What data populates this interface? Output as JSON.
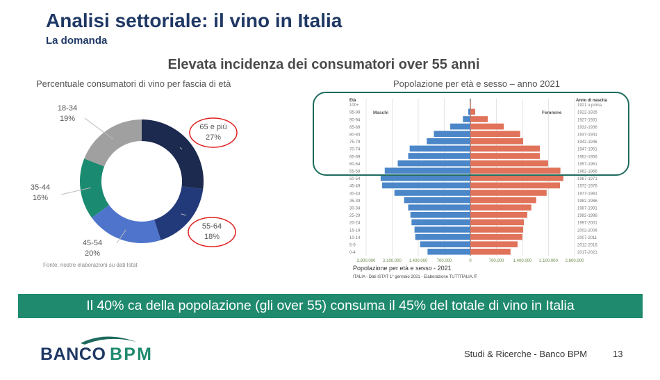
{
  "header": {
    "title": "Analisi settoriale: il vino in Italia",
    "subtitle": "La domanda"
  },
  "heading": "Elevata incidenza dei consumatori over 55 anni",
  "banner": "Il 40% ca della popolazione (gli over 55) consuma il 45% del totale di vino in Italia",
  "footer": {
    "text": "Studi & Ricerche - Banco BPM",
    "page": "13",
    "logo_text": "BANCO BPM"
  },
  "colors": {
    "title": "#1f3864",
    "banner": "#1f8a6e",
    "highlight": "#e02020",
    "male": "#4a86c8",
    "female": "#e0735a",
    "box": "#1e6b5e"
  },
  "chart_data": [
    {
      "type": "pie",
      "variant": "donut",
      "title": "Percentuale consumatori di vino per fascia di età",
      "source": "Fonte: nostre elaborazioni su dati Istat",
      "unit": "%",
      "slices": [
        {
          "label": "65 e più",
          "value": 27,
          "color": "#1b2a4e",
          "highlighted": true
        },
        {
          "label": "55-64",
          "value": 18,
          "color": "#223a7a",
          "highlighted": true
        },
        {
          "label": "45-54",
          "value": 20,
          "color": "#4f74cc",
          "highlighted": false
        },
        {
          "label": "35-44",
          "value": 16,
          "color": "#1a8a70",
          "highlighted": false
        },
        {
          "label": "18-34",
          "value": 19,
          "color": "#a0a0a0",
          "highlighted": false
        }
      ]
    },
    {
      "type": "bar",
      "variant": "population-pyramid",
      "title": "Popolazione per età e sesso – anno 2021",
      "inner_title": "Popolazione per età e sesso - 2021",
      "source": "ITALIA - Dati ISTAT 1° gennaio 2021 - Elaborazione TUTTITALIA.IT",
      "age_header": "Età",
      "birth_header": "Anno di nascita",
      "categories": [
        "100+",
        "95-99",
        "90-94",
        "85-89",
        "80-84",
        "75-79",
        "70-74",
        "65-69",
        "60-64",
        "55-59",
        "50-54",
        "45-49",
        "40-44",
        "35-39",
        "30-34",
        "25-29",
        "20-24",
        "15-19",
        "10-14",
        "5-9",
        "0-4"
      ],
      "birth_years": [
        "1921 o prima",
        "1922-1926",
        "1927-1931",
        "1932-1936",
        "1937-1941",
        "1942-1946",
        "1947-1951",
        "1952-1956",
        "1957-1961",
        "1962-1966",
        "1967-1971",
        "1972-1976",
        "1977-1981",
        "1982-1986",
        "1987-1991",
        "1992-1996",
        "1997-2001",
        "2002-2006",
        "2007-2011",
        "2012-2016",
        "2017-2021"
      ],
      "series": [
        {
          "name": "Maschi",
          "side": "left",
          "values": [
            5000,
            55000,
            200000,
            540000,
            980000,
            1170000,
            1630000,
            1670000,
            1950000,
            2300000,
            2410000,
            2370000,
            2040000,
            1780000,
            1670000,
            1610000,
            1580000,
            1500000,
            1480000,
            1350000,
            1150000
          ]
        },
        {
          "name": "Femmine",
          "side": "right",
          "values": [
            15000,
            130000,
            470000,
            900000,
            1340000,
            1420000,
            1870000,
            1870000,
            2090000,
            2420000,
            2500000,
            2410000,
            2050000,
            1770000,
            1640000,
            1530000,
            1440000,
            1420000,
            1400000,
            1270000,
            1080000
          ]
        }
      ],
      "xlim": [
        0,
        2800000
      ],
      "x_ticks": [
        "2.800.000",
        "2.100.000",
        "1.400.000",
        "700.000",
        "0",
        "700.000",
        "1.400.000",
        "2.100.000",
        "2.800.000"
      ],
      "grid": true,
      "highlight_box": "55+"
    }
  ]
}
